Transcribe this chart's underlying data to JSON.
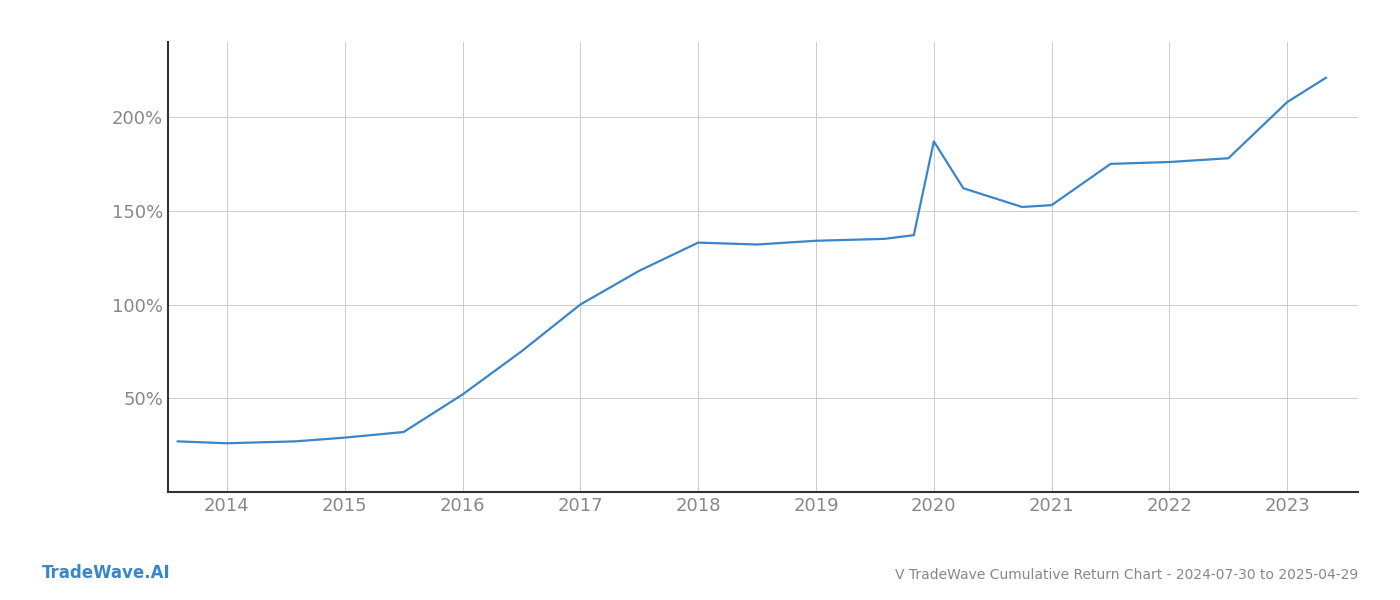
{
  "title": "V TradeWave Cumulative Return Chart - 2024-07-30 to 2025-04-29",
  "watermark": "TradeWave.AI",
  "line_color": "#3a86c8",
  "background_color": "#ffffff",
  "grid_color": "#cccccc",
  "years": [
    2014,
    2015,
    2016,
    2017,
    2018,
    2019,
    2020,
    2021,
    2022,
    2023
  ],
  "x_values": [
    2013.58,
    2014.0,
    2014.58,
    2015.0,
    2015.5,
    2016.0,
    2016.5,
    2017.0,
    2017.5,
    2018.0,
    2018.5,
    2019.0,
    2019.58,
    2019.83,
    2020.0,
    2020.25,
    2020.75,
    2021.0,
    2021.5,
    2022.0,
    2022.5,
    2023.0,
    2023.33
  ],
  "y_values": [
    27,
    26,
    27,
    29,
    32,
    52,
    75,
    100,
    118,
    133,
    132,
    134,
    135,
    137,
    187,
    162,
    152,
    153,
    175,
    176,
    178,
    208,
    221
  ],
  "yticks": [
    50,
    100,
    150,
    200
  ],
  "ytick_labels": [
    "50%",
    "100%",
    "150%",
    "200%"
  ],
  "ylim": [
    0,
    240
  ],
  "xlim": [
    2013.5,
    2023.6
  ],
  "title_fontsize": 10,
  "watermark_fontsize": 12,
  "tick_fontsize": 13,
  "line_width": 1.6,
  "axis_color": "#333333",
  "tick_color": "#888888",
  "spine_color": "#333333"
}
